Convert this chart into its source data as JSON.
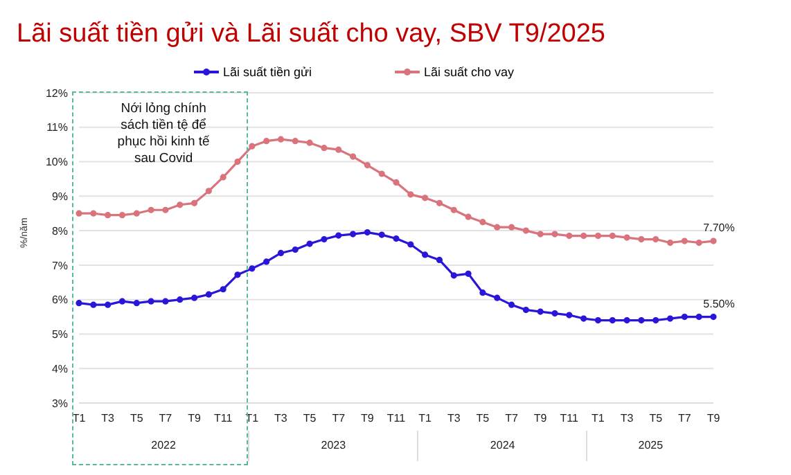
{
  "chart_data": {
    "type": "line",
    "title": "Lãi suất tiền gửi và Lãi suất cho vay, SBV T9/2025",
    "ylabel": "%/năm",
    "categories": [
      "T1",
      null,
      "T3",
      null,
      "T5",
      null,
      "T7",
      null,
      "T9",
      null,
      "T11",
      null,
      "T1",
      null,
      "T3",
      null,
      "T5",
      null,
      "T7",
      null,
      "T9",
      null,
      "T11",
      null,
      "T1",
      null,
      "T3",
      null,
      "T5",
      null,
      "T7",
      null,
      "T9",
      null,
      "T11",
      null,
      "T1",
      null,
      "T3",
      null,
      "T5",
      null,
      "T7",
      null,
      "T9"
    ],
    "series": [
      {
        "name": "Lãi suất tiền gửi",
        "color": "#2a16d8",
        "values": [
          5.9,
          5.85,
          5.85,
          5.95,
          5.9,
          5.95,
          5.95,
          6.0,
          6.05,
          6.15,
          6.3,
          6.72,
          6.9,
          7.1,
          7.35,
          7.45,
          7.62,
          7.75,
          7.86,
          7.9,
          7.95,
          7.88,
          7.77,
          7.6,
          7.3,
          7.15,
          6.7,
          6.75,
          6.2,
          6.05,
          5.85,
          5.7,
          5.65,
          5.6,
          5.55,
          5.45,
          5.4,
          5.4,
          5.4,
          5.4,
          5.4,
          5.45,
          5.5,
          5.5,
          5.5
        ],
        "value_labels": [
          null,
          null,
          null,
          null,
          null,
          null,
          null,
          null,
          null,
          null,
          null,
          null,
          null,
          null,
          null,
          null,
          null,
          null,
          null,
          null,
          null,
          null,
          null,
          null,
          null,
          null,
          null,
          null,
          null,
          null,
          null,
          null,
          null,
          null,
          null,
          null,
          null,
          null,
          null,
          null,
          null,
          null,
          null,
          null,
          "5.50%"
        ]
      },
      {
        "name": "Lãi suất cho vay",
        "color": "#d9737c",
        "values": [
          8.5,
          8.5,
          8.45,
          8.45,
          8.5,
          8.6,
          8.6,
          8.75,
          8.8,
          9.15,
          9.55,
          10.0,
          10.45,
          10.6,
          10.65,
          10.6,
          10.55,
          10.4,
          10.35,
          10.15,
          9.9,
          9.65,
          9.4,
          9.05,
          8.95,
          8.8,
          8.6,
          8.4,
          8.25,
          8.1,
          8.1,
          8.0,
          7.9,
          7.9,
          7.85,
          7.85,
          7.85,
          7.85,
          7.8,
          7.75,
          7.75,
          7.65,
          7.7,
          7.65,
          7.7
        ],
        "value_labels": [
          null,
          null,
          null,
          null,
          null,
          null,
          null,
          null,
          null,
          null,
          null,
          null,
          null,
          null,
          null,
          null,
          null,
          null,
          null,
          null,
          null,
          null,
          null,
          null,
          null,
          null,
          null,
          null,
          null,
          null,
          null,
          null,
          null,
          null,
          null,
          null,
          null,
          null,
          null,
          null,
          null,
          null,
          null,
          null,
          "7.70%"
        ]
      }
    ],
    "ylim": [
      3,
      12
    ],
    "yticks": [
      {
        "value": 3,
        "label": "3%"
      },
      {
        "value": 4,
        "label": "4%"
      },
      {
        "value": 5,
        "label": "5%"
      },
      {
        "value": 6,
        "label": "6%"
      },
      {
        "value": 7,
        "label": "7%"
      },
      {
        "value": 8,
        "label": "8%"
      },
      {
        "value": 9,
        "label": "9%"
      },
      {
        "value": 10,
        "label": "10%"
      },
      {
        "value": 11,
        "label": "11%"
      },
      {
        "value": 12,
        "label": "12%"
      }
    ],
    "annotations": [
      "Nới lỏng chính sách tiền tệ để phục hồi kinh tế sau Covid",
      "2022",
      "2023",
      "2024",
      "2025"
    ],
    "grid": "y",
    "legend": "top",
    "marker": "circle",
    "line_style": "solid"
  }
}
